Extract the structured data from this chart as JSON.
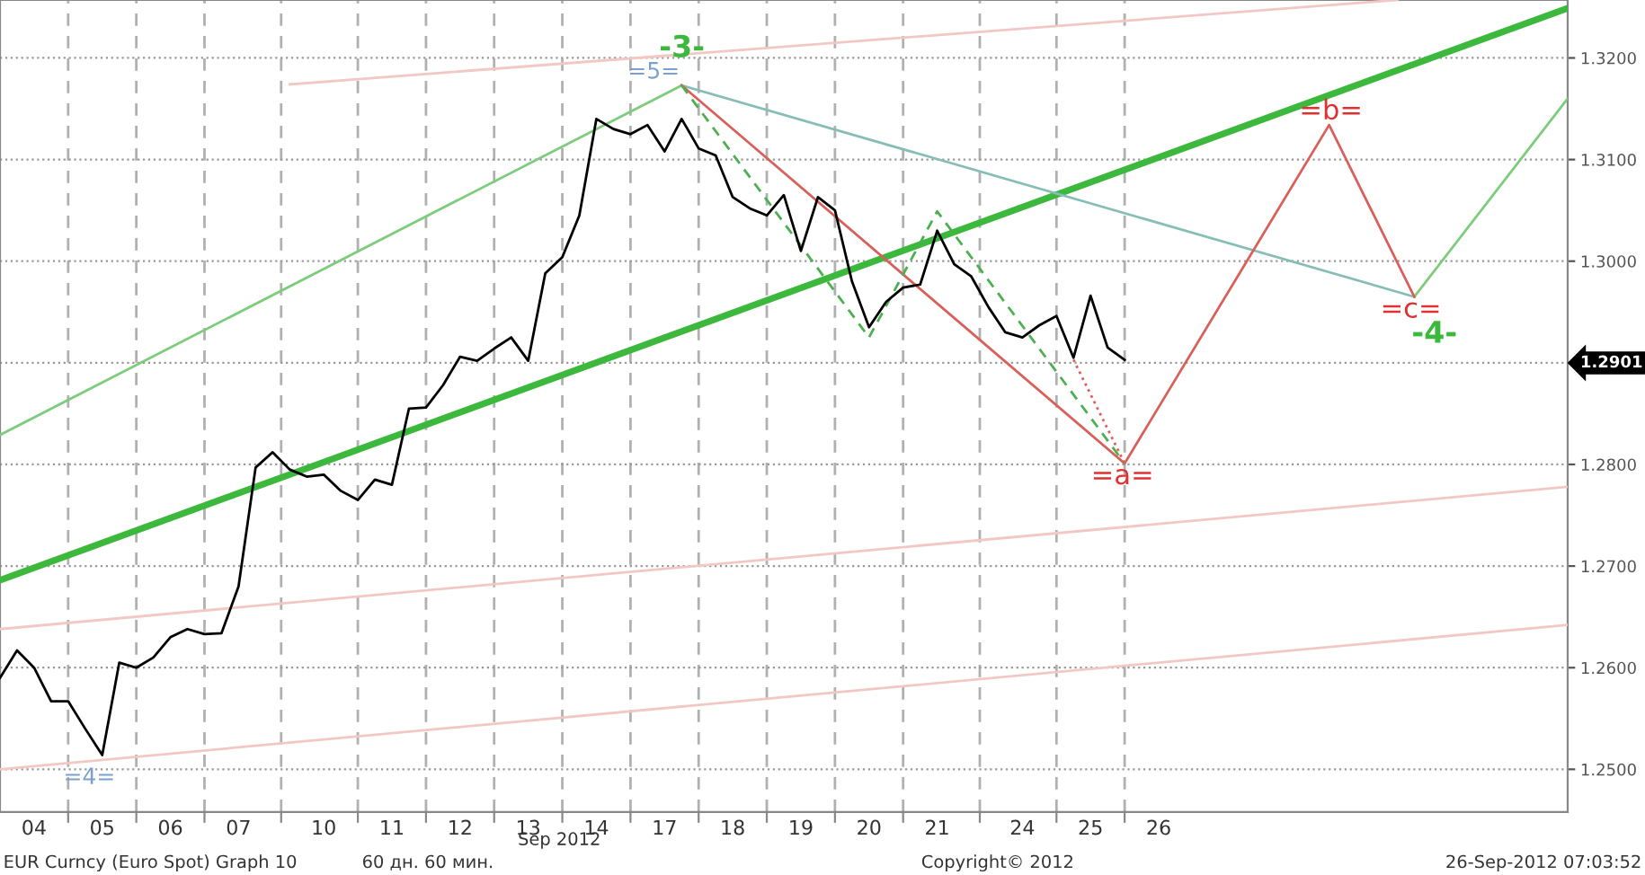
{
  "chart_data": {
    "type": "line",
    "categories": [
      null,
      null,
      "04",
      null,
      null,
      null,
      "05",
      null,
      null,
      null,
      "06",
      null,
      null,
      null,
      "07",
      null,
      null,
      null,
      null,
      "10",
      null,
      null,
      null,
      "11",
      null,
      null,
      null,
      "12",
      null,
      null,
      null,
      "13",
      null,
      null,
      null,
      "14",
      null,
      null,
      null,
      "17",
      null,
      null,
      null,
      "18",
      null,
      null,
      null,
      "19",
      null,
      null,
      null,
      "20",
      null,
      null,
      null,
      "21",
      null,
      null,
      null,
      null,
      "24",
      null,
      null,
      null,
      "25",
      null,
      null,
      null,
      "26",
      null,
      null,
      null,
      null,
      null,
      null,
      null,
      null,
      null,
      null,
      null,
      null,
      null,
      null,
      null,
      null,
      null,
      null,
      null,
      null,
      null,
      null,
      null,
      null
    ],
    "ylim": [
      1.2458,
      1.3257
    ],
    "yticks": [
      {
        "value": 1.25,
        "label": "1.2500"
      },
      {
        "value": 1.26,
        "label": "1.2600"
      },
      {
        "value": 1.27,
        "label": "1.2700"
      },
      {
        "value": 1.28,
        "label": "1.2800"
      },
      {
        "value": 1.29,
        "label": null
      },
      {
        "value": 1.3,
        "label": "1.3000"
      },
      {
        "value": 1.31,
        "label": "1.3100"
      },
      {
        "value": 1.32,
        "label": "1.3200"
      }
    ],
    "grid": true,
    "legend": false,
    "marker": "none",
    "series": [
      {
        "color": "#f2c8c4",
        "values": [
          null,
          null,
          null,
          null,
          null,
          null,
          null,
          null,
          null,
          null,
          null,
          null,
          null,
          null,
          null,
          null,
          null,
          1.3174,
          null,
          null,
          null,
          null,
          null,
          null,
          null,
          null,
          null,
          null,
          null,
          null,
          null,
          null,
          null,
          null,
          null,
          null,
          null,
          null,
          null,
          null,
          null,
          null,
          null,
          null,
          null,
          null,
          null,
          null,
          null,
          null,
          null,
          null,
          null,
          null,
          null,
          null,
          null,
          null,
          null,
          null,
          null,
          null,
          null,
          null,
          null,
          null,
          null,
          null,
          null,
          null,
          null,
          null,
          null,
          null,
          null,
          null,
          null,
          null,
          null,
          null,
          null,
          null,
          1.3257,
          null,
          null,
          null,
          null,
          null,
          null,
          null,
          null,
          null,
          null
        ]
      },
      {
        "color": "#f2c8c4",
        "values": [
          1.2638,
          null,
          null,
          null,
          null,
          null,
          null,
          null,
          null,
          null,
          null,
          null,
          null,
          null,
          null,
          null,
          null,
          null,
          null,
          null,
          null,
          null,
          null,
          null,
          null,
          null,
          null,
          null,
          null,
          null,
          null,
          null,
          null,
          null,
          null,
          null,
          null,
          null,
          null,
          null,
          null,
          null,
          null,
          null,
          null,
          null,
          null,
          null,
          null,
          null,
          null,
          null,
          null,
          null,
          null,
          null,
          null,
          null,
          null,
          null,
          null,
          null,
          null,
          null,
          null,
          null,
          null,
          null,
          null,
          null,
          null,
          null,
          null,
          null,
          null,
          null,
          null,
          null,
          null,
          null,
          null,
          null,
          null,
          null,
          null,
          null,
          null,
          null,
          null,
          null,
          null,
          null,
          1.2778
        ]
      },
      {
        "color": "#f2c8c4",
        "values": [
          1.25,
          null,
          null,
          null,
          null,
          null,
          null,
          null,
          null,
          null,
          null,
          null,
          null,
          null,
          null,
          null,
          null,
          null,
          null,
          null,
          null,
          null,
          null,
          null,
          null,
          null,
          null,
          null,
          null,
          null,
          null,
          null,
          null,
          null,
          null,
          null,
          null,
          null,
          null,
          null,
          null,
          null,
          null,
          null,
          null,
          null,
          null,
          null,
          null,
          null,
          null,
          null,
          null,
          null,
          null,
          null,
          null,
          null,
          null,
          null,
          null,
          null,
          null,
          null,
          null,
          null,
          null,
          null,
          null,
          null,
          null,
          null,
          null,
          null,
          null,
          null,
          null,
          null,
          null,
          null,
          null,
          null,
          null,
          null,
          null,
          null,
          null,
          null,
          null,
          null,
          null,
          null,
          1.2642
        ]
      },
      {
        "color": "#7ccc7c",
        "values": [
          1.2829,
          null,
          null,
          null,
          null,
          null,
          null,
          null,
          null,
          null,
          null,
          null,
          null,
          null,
          null,
          null,
          null,
          null,
          null,
          null,
          null,
          null,
          null,
          null,
          null,
          null,
          null,
          null,
          null,
          null,
          null,
          null,
          null,
          null,
          null,
          null,
          null,
          null,
          null,
          null,
          1.3173,
          null,
          null,
          null,
          null,
          null,
          null,
          null,
          null,
          null,
          null,
          null,
          null,
          null,
          null,
          null,
          null,
          null,
          null,
          null,
          null,
          null,
          null,
          null,
          null,
          null,
          null,
          null,
          null,
          null,
          null,
          null,
          null,
          null,
          null,
          null,
          null,
          null,
          null,
          null,
          null,
          null,
          null,
          null,
          null,
          null,
          null,
          null,
          null,
          null,
          null,
          null,
          null
        ]
      },
      {
        "color": "#3cb83c",
        "values": [
          1.2686,
          null,
          null,
          null,
          null,
          null,
          null,
          null,
          null,
          null,
          null,
          null,
          null,
          null,
          null,
          null,
          null,
          null,
          null,
          null,
          null,
          null,
          null,
          null,
          null,
          null,
          null,
          null,
          null,
          null,
          null,
          null,
          null,
          null,
          null,
          null,
          null,
          null,
          null,
          null,
          null,
          null,
          null,
          null,
          null,
          null,
          null,
          null,
          null,
          null,
          null,
          null,
          null,
          null,
          null,
          null,
          null,
          null,
          null,
          null,
          null,
          null,
          null,
          null,
          null,
          null,
          null,
          null,
          null,
          null,
          null,
          null,
          null,
          null,
          null,
          null,
          null,
          null,
          null,
          null,
          null,
          null,
          null,
          null,
          null,
          null,
          null,
          null,
          null,
          null,
          null,
          null,
          1.3249
        ]
      },
      {
        "color": "#86bdb5",
        "values": [
          null,
          null,
          null,
          null,
          null,
          null,
          null,
          null,
          null,
          null,
          null,
          null,
          null,
          null,
          null,
          null,
          null,
          null,
          null,
          null,
          null,
          null,
          null,
          null,
          null,
          null,
          null,
          null,
          null,
          null,
          null,
          null,
          null,
          null,
          null,
          null,
          null,
          null,
          null,
          null,
          1.3173,
          null,
          null,
          null,
          null,
          null,
          null,
          null,
          null,
          null,
          null,
          null,
          null,
          null,
          null,
          null,
          null,
          null,
          null,
          null,
          null,
          null,
          null,
          null,
          null,
          null,
          null,
          null,
          null,
          null,
          null,
          null,
          null,
          null,
          null,
          null,
          null,
          null,
          null,
          null,
          null,
          null,
          null,
          1.2965,
          null,
          null,
          null,
          null,
          null,
          null,
          null,
          null,
          null
        ]
      },
      {
        "color": "#7ccc7c",
        "values": [
          null,
          null,
          null,
          null,
          null,
          null,
          null,
          null,
          null,
          null,
          null,
          null,
          null,
          null,
          null,
          null,
          null,
          null,
          null,
          null,
          null,
          null,
          null,
          null,
          null,
          null,
          null,
          null,
          null,
          null,
          null,
          null,
          null,
          null,
          null,
          null,
          null,
          null,
          null,
          null,
          null,
          null,
          null,
          null,
          null,
          null,
          null,
          null,
          null,
          null,
          null,
          null,
          null,
          null,
          null,
          null,
          null,
          null,
          null,
          null,
          null,
          null,
          null,
          null,
          null,
          null,
          null,
          null,
          null,
          null,
          null,
          null,
          null,
          null,
          null,
          null,
          null,
          null,
          null,
          null,
          null,
          null,
          null,
          1.2965,
          null,
          null,
          null,
          null,
          null,
          null,
          null,
          null,
          1.316
        ]
      },
      {
        "color": "#d9605a",
        "values": [
          null,
          null,
          null,
          null,
          null,
          null,
          null,
          null,
          null,
          null,
          null,
          null,
          null,
          null,
          null,
          null,
          null,
          null,
          null,
          null,
          null,
          null,
          null,
          null,
          null,
          null,
          null,
          null,
          null,
          null,
          null,
          null,
          null,
          null,
          null,
          null,
          null,
          null,
          null,
          null,
          1.3173,
          null,
          null,
          null,
          null,
          null,
          null,
          null,
          null,
          null,
          null,
          null,
          null,
          null,
          null,
          null,
          null,
          null,
          null,
          null,
          null,
          null,
          null,
          null,
          null,
          null,
          1.2801,
          null,
          null,
          null,
          null,
          null,
          null,
          null,
          null,
          null,
          null,
          null,
          1.3134,
          null,
          null,
          null,
          null,
          1.2965,
          null,
          null,
          null,
          null,
          null,
          null,
          null,
          null,
          null
        ]
      },
      {
        "color": "#4caf50",
        "line_style": "dashed",
        "values": [
          null,
          null,
          null,
          null,
          null,
          null,
          null,
          null,
          null,
          null,
          null,
          null,
          null,
          null,
          null,
          null,
          null,
          null,
          null,
          null,
          null,
          null,
          null,
          null,
          null,
          null,
          null,
          null,
          null,
          null,
          null,
          null,
          null,
          null,
          null,
          null,
          null,
          null,
          null,
          null,
          1.3173,
          null,
          null,
          null,
          null,
          null,
          null,
          null,
          null,
          null,
          null,
          1.2925,
          null,
          null,
          null,
          1.3049,
          null,
          null,
          null,
          null,
          null,
          null,
          null,
          null,
          null,
          null,
          1.2801,
          null,
          null,
          null,
          null,
          null,
          null,
          null,
          null,
          null,
          null,
          null,
          null,
          null,
          null,
          null,
          null,
          null,
          null,
          null,
          null,
          null,
          null,
          null,
          null,
          null,
          null
        ]
      },
      {
        "color": "#d9605a",
        "line_style": "dotted",
        "values": [
          null,
          null,
          null,
          null,
          null,
          null,
          null,
          null,
          null,
          null,
          null,
          null,
          null,
          null,
          null,
          null,
          null,
          null,
          null,
          null,
          null,
          null,
          null,
          null,
          null,
          null,
          null,
          null,
          null,
          null,
          null,
          null,
          null,
          null,
          null,
          null,
          null,
          null,
          null,
          null,
          null,
          null,
          null,
          null,
          null,
          null,
          null,
          null,
          null,
          null,
          null,
          null,
          null,
          null,
          null,
          null,
          null,
          null,
          null,
          null,
          null,
          null,
          null,
          1.2903,
          null,
          null,
          1.2801,
          null,
          null,
          null,
          null,
          null,
          null,
          null,
          null,
          null,
          null,
          null,
          null,
          null,
          null,
          null,
          null,
          null,
          null,
          null,
          null,
          null,
          null,
          null,
          null,
          null,
          null
        ]
      },
      {
        "color": "#000000",
        "values": [
          1.259,
          1.2617,
          1.26,
          1.2567,
          1.2567,
          1.254,
          1.2514,
          1.2605,
          1.26,
          1.261,
          1.263,
          1.2638,
          1.2633,
          1.2634,
          1.268,
          1.2797,
          1.2812,
          1.2795,
          1.2788,
          1.279,
          1.2774,
          1.2765,
          1.2785,
          1.278,
          1.2855,
          1.2856,
          1.2878,
          1.2906,
          1.2902,
          1.2914,
          1.2925,
          1.2902,
          1.2988,
          1.3004,
          1.3045,
          1.314,
          1.313,
          1.3125,
          1.3134,
          1.3108,
          1.314,
          1.3111,
          1.3104,
          1.3063,
          1.3052,
          1.3045,
          1.3065,
          1.301,
          1.3063,
          1.305,
          1.298,
          1.2935,
          1.296,
          1.2974,
          1.2977,
          1.303,
          1.2997,
          1.2985,
          1.2955,
          1.293,
          1.2925,
          1.2937,
          1.2946,
          1.2905,
          1.2966,
          1.2915,
          1.2903,
          null,
          null,
          null,
          null,
          null,
          null,
          null,
          null,
          null,
          null,
          null,
          null,
          null,
          null,
          null,
          null,
          null,
          null,
          null,
          null,
          null,
          null,
          null,
          null,
          null,
          null
        ]
      }
    ],
    "annotations": [
      "-3-",
      "=5=",
      "=4=",
      {
        "text": "=a=",
        "y": 1.2801
      },
      {
        "text": "=b=",
        "y": 1.3134
      },
      {
        "text": "=c=",
        "y": 1.2965
      },
      "-4-",
      "1.2901",
      "Sep 2012",
      "EUR Curncy (Euro Spot) Graph 10",
      "60 дн. 60 мин.",
      "Copyright© 2012",
      "26-Sep-2012 07:03:52"
    ]
  }
}
